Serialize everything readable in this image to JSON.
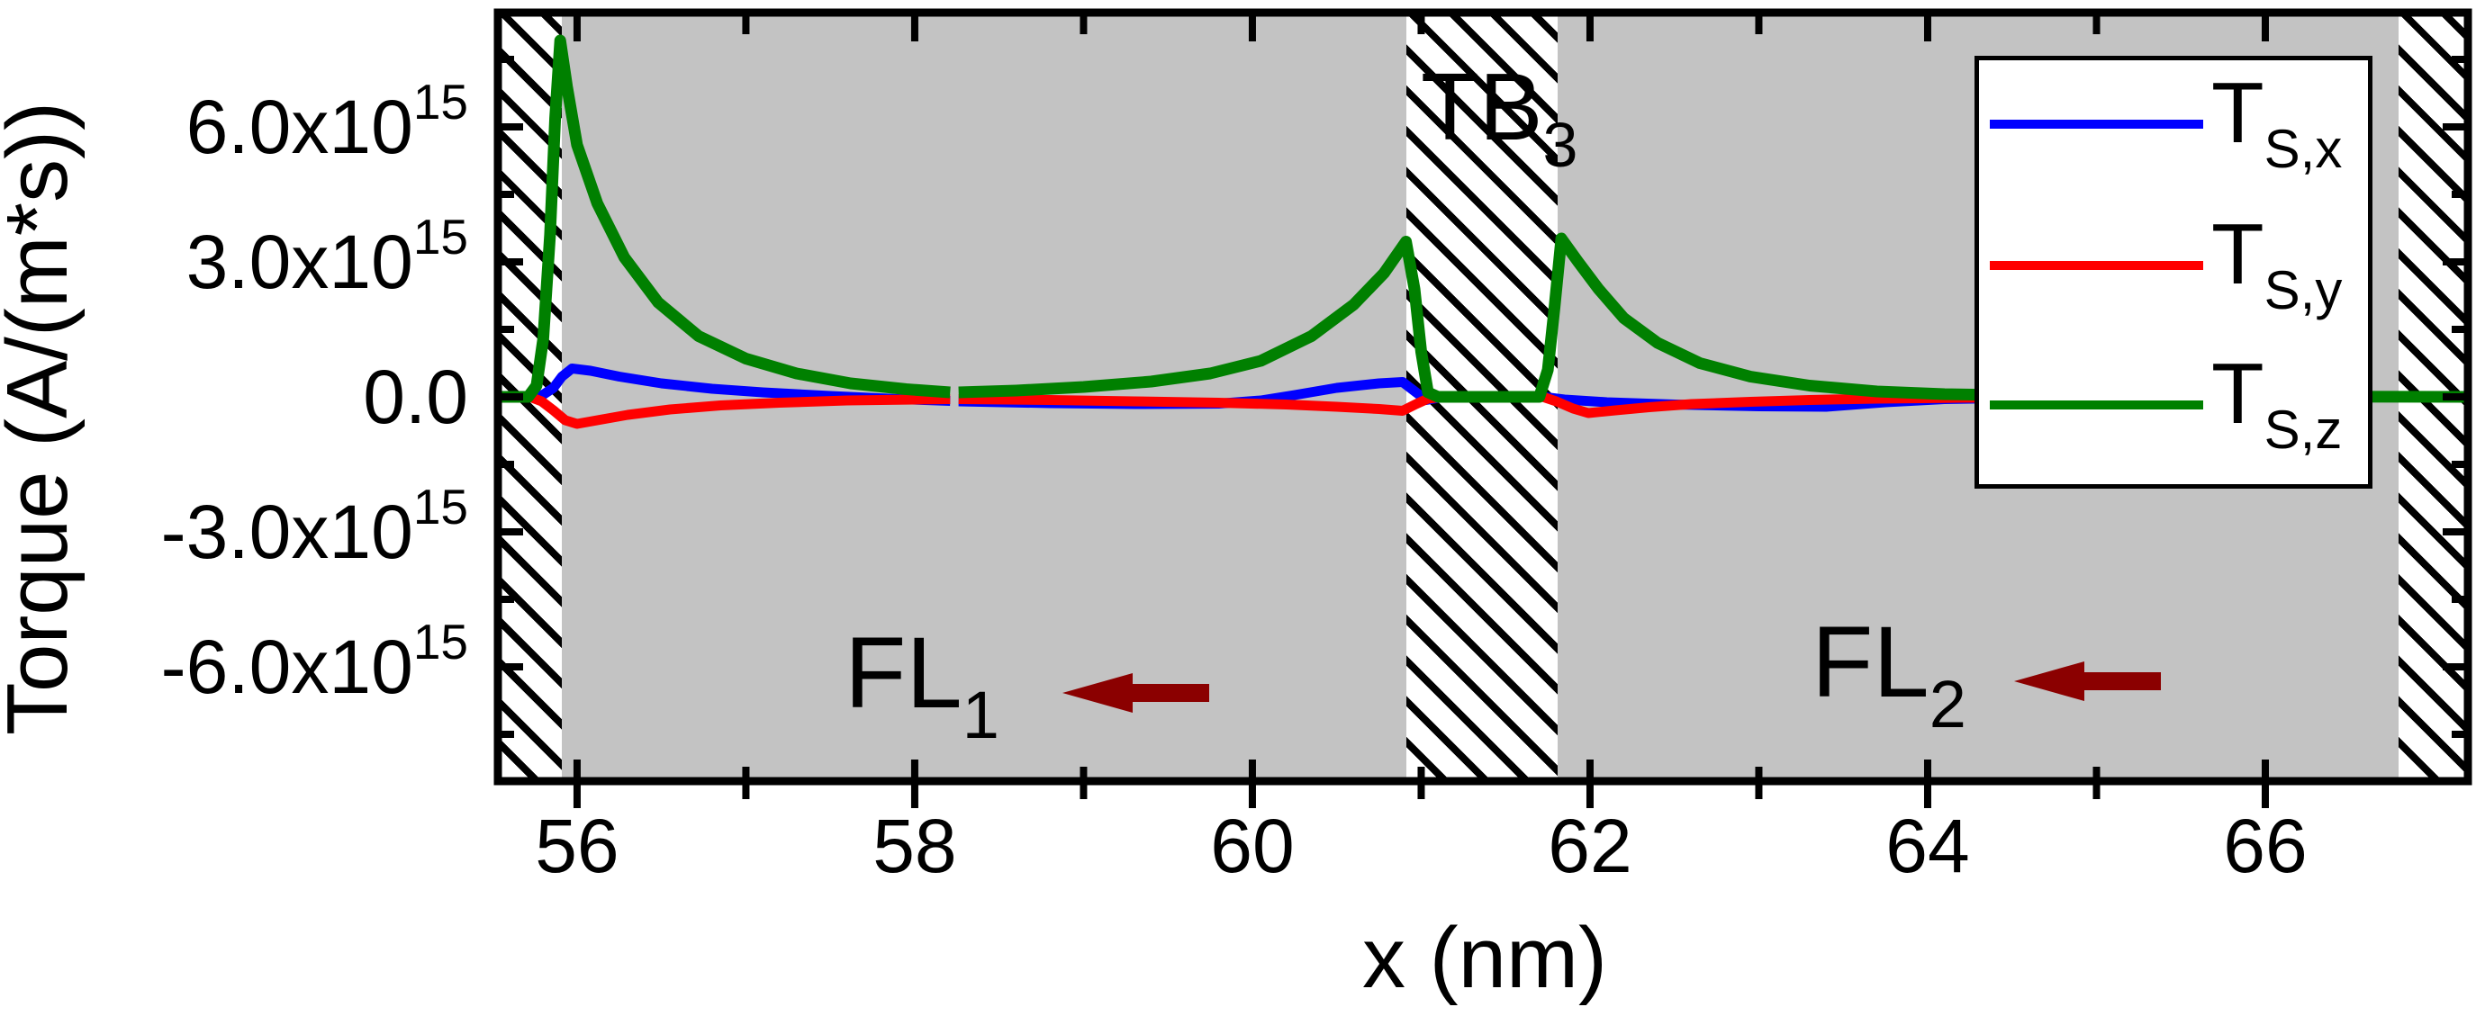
{
  "figure": {
    "background": "#ffffff"
  },
  "axes": {
    "x": {
      "title": "x (nm)",
      "major_ticks": [
        {
          "label": "56",
          "v": 56
        },
        {
          "label": "58",
          "v": 58
        },
        {
          "label": "60",
          "v": 60
        },
        {
          "label": "62",
          "v": 62
        },
        {
          "label": "64",
          "v": 64
        },
        {
          "label": "66",
          "v": 66
        }
      ],
      "minor_ticks": [
        57,
        59,
        61,
        63,
        65
      ],
      "top_ticks": [
        56,
        57,
        58,
        59,
        60,
        61,
        62,
        63,
        64,
        65,
        66
      ]
    },
    "y": {
      "title": "Torque (A/(m*s))",
      "major_ticks": [
        {
          "main": "6.0x10",
          "sup": "15",
          "v": 6
        },
        {
          "main": "3.0x10",
          "sup": "15",
          "v": 3
        },
        {
          "main": "0.0",
          "sup": "",
          "v": 0
        },
        {
          "main": "-3.0x10",
          "sup": "15",
          "v": -3
        },
        {
          "main": "-6.0x10",
          "sup": "15",
          "v": -6
        }
      ],
      "minor_ticks": [
        7.5,
        4.5,
        1.5,
        -1.5,
        -4.5,
        -7.5
      ]
    }
  },
  "labels": {
    "tb3": {
      "main": "TB",
      "sub": "3"
    },
    "fl1": {
      "main": "FL",
      "sub": "1"
    },
    "fl2": {
      "main": "FL",
      "sub": "2"
    }
  },
  "legend": {
    "items": [
      {
        "main": "T",
        "sub": "S,x",
        "color": "#0000ff"
      },
      {
        "main": "T",
        "sub": "S,y",
        "color": "#ff0000"
      },
      {
        "main": "T",
        "sub": "S,z",
        "color": "#008000"
      }
    ]
  },
  "colors": {
    "gray_region": "#c3c3c3",
    "arrow": "#8b0000",
    "axis": "#000000",
    "ts_x": "#0000ff",
    "ts_y": "#ff0000",
    "ts_z": "#008000"
  },
  "arrows": [
    {
      "region": "FL1",
      "direction": "left"
    },
    {
      "region": "FL2",
      "direction": "left"
    }
  ],
  "chart_data": {
    "type": "line",
    "xlabel": "x (nm)",
    "ylabel": "Torque (A/(m*s))",
    "xlim": [
      55.531,
      67.2
    ],
    "ylim": [
      -8540000000000000.0,
      8540000000000000.0
    ],
    "value_unit": "A/(m*s)",
    "value_scale": 1000000000000000.0,
    "ylim_scaled": [
      -8.54,
      8.54
    ],
    "grid": false,
    "legend_position": "upper right",
    "regions": [
      {
        "name": "tunnel-barrier-left",
        "kind": "hatch",
        "x0": 55.531,
        "x1": 55.91
      },
      {
        "name": "FL1",
        "kind": "gray",
        "x0": 55.91,
        "x1": 60.91
      },
      {
        "name": "TB3",
        "kind": "hatch",
        "x0": 60.91,
        "x1": 61.81
      },
      {
        "name": "FL2",
        "kind": "gray",
        "x0": 61.81,
        "x1": 66.79
      },
      {
        "name": "tunnel-barrier-right",
        "kind": "hatch",
        "x0": 66.79,
        "x1": 67.2
      }
    ],
    "series": [
      {
        "name": "T_S,x",
        "color": "#0000ff",
        "width": 11,
        "segments": [
          [
            [
              55.531,
              0
            ],
            [
              55.74,
              0
            ],
            [
              55.8,
              0.05
            ],
            [
              55.86,
              0.2
            ],
            [
              55.91,
              0.45
            ],
            [
              55.97,
              0.63
            ],
            [
              56.08,
              0.58
            ],
            [
              56.25,
              0.45
            ],
            [
              56.5,
              0.3
            ],
            [
              56.8,
              0.18
            ],
            [
              57.1,
              0.1
            ],
            [
              57.5,
              0.02
            ],
            [
              57.9,
              -0.05
            ],
            [
              58.21,
              -0.09
            ]
          ],
          [
            [
              58.26,
              -0.1
            ],
            [
              58.8,
              -0.14
            ],
            [
              59.3,
              -0.16
            ],
            [
              59.8,
              -0.15
            ],
            [
              60.05,
              -0.08
            ],
            [
              60.25,
              0.04
            ],
            [
              60.5,
              0.2
            ],
            [
              60.75,
              0.3
            ],
            [
              60.89,
              0.33
            ],
            [
              60.97,
              0.1
            ],
            [
              61.03,
              -0.07
            ],
            [
              61.12,
              -0.01
            ],
            [
              61.25,
              0
            ],
            [
              61.72,
              0
            ],
            [
              61.85,
              -0.06
            ],
            [
              62.1,
              -0.12
            ],
            [
              62.5,
              -0.17
            ],
            [
              63.0,
              -0.21
            ],
            [
              63.4,
              -0.22
            ],
            [
              63.75,
              -0.12
            ],
            [
              64.1,
              -0.05
            ],
            [
              64.6,
              -0.02
            ],
            [
              65.2,
              0
            ],
            [
              67.2,
              0
            ]
          ]
        ]
      },
      {
        "name": "T_S,y",
        "color": "#ff0000",
        "width": 11,
        "segments": [
          [
            [
              55.531,
              0
            ],
            [
              55.72,
              0
            ],
            [
              55.79,
              -0.1
            ],
            [
              55.86,
              -0.3
            ],
            [
              55.93,
              -0.52
            ],
            [
              56.0,
              -0.6
            ],
            [
              56.12,
              -0.52
            ],
            [
              56.3,
              -0.4
            ],
            [
              56.55,
              -0.28
            ],
            [
              56.85,
              -0.19
            ],
            [
              57.2,
              -0.13
            ],
            [
              57.6,
              -0.08
            ],
            [
              58.0,
              -0.06
            ],
            [
              58.21,
              -0.05
            ]
          ],
          [
            [
              58.26,
              -0.05
            ],
            [
              58.8,
              -0.07
            ],
            [
              59.3,
              -0.1
            ],
            [
              59.8,
              -0.13
            ],
            [
              60.2,
              -0.17
            ],
            [
              60.5,
              -0.22
            ],
            [
              60.75,
              -0.27
            ],
            [
              60.89,
              -0.31
            ],
            [
              60.97,
              -0.16
            ],
            [
              61.04,
              -0.04
            ],
            [
              61.12,
              0
            ],
            [
              61.72,
              0
            ],
            [
              61.8,
              -0.1
            ],
            [
              61.9,
              -0.26
            ],
            [
              61.99,
              -0.36
            ],
            [
              62.15,
              -0.3
            ],
            [
              62.35,
              -0.23
            ],
            [
              62.6,
              -0.16
            ],
            [
              62.95,
              -0.11
            ],
            [
              63.3,
              -0.07
            ],
            [
              63.7,
              -0.04
            ],
            [
              64.2,
              -0.02
            ],
            [
              64.8,
              -0.01
            ],
            [
              67.2,
              0
            ]
          ]
        ]
      },
      {
        "name": "T_S,z",
        "color": "#008000",
        "width": 13,
        "segments": [
          [
            [
              55.531,
              0
            ],
            [
              55.71,
              0
            ],
            [
              55.76,
              0.25
            ],
            [
              55.8,
              1.3
            ],
            [
              55.84,
              3.6
            ],
            [
              55.87,
              6.2
            ],
            [
              55.9,
              7.92
            ],
            [
              55.94,
              6.9
            ],
            [
              56.0,
              5.6
            ],
            [
              56.12,
              4.3
            ],
            [
              56.28,
              3.1
            ],
            [
              56.48,
              2.1
            ],
            [
              56.72,
              1.35
            ],
            [
              57.0,
              0.85
            ],
            [
              57.3,
              0.52
            ],
            [
              57.62,
              0.3
            ],
            [
              57.95,
              0.17
            ],
            [
              58.21,
              0.1
            ]
          ],
          [
            [
              58.26,
              0.1
            ],
            [
              58.6,
              0.14
            ],
            [
              59.0,
              0.22
            ],
            [
              59.4,
              0.34
            ],
            [
              59.75,
              0.52
            ],
            [
              60.05,
              0.8
            ],
            [
              60.35,
              1.35
            ],
            [
              60.6,
              2.05
            ],
            [
              60.78,
              2.75
            ],
            [
              60.91,
              3.45
            ],
            [
              60.96,
              2.4
            ],
            [
              61.0,
              1.0
            ],
            [
              61.04,
              0.1
            ],
            [
              61.1,
              0
            ],
            [
              61.7,
              0
            ],
            [
              61.75,
              0.6
            ],
            [
              61.79,
              2.0
            ],
            [
              61.83,
              3.52
            ],
            [
              61.93,
              3.0
            ],
            [
              62.05,
              2.4
            ],
            [
              62.2,
              1.75
            ],
            [
              62.4,
              1.2
            ],
            [
              62.65,
              0.75
            ],
            [
              62.95,
              0.45
            ],
            [
              63.3,
              0.25
            ],
            [
              63.7,
              0.12
            ],
            [
              64.1,
              0.06
            ],
            [
              64.6,
              0.03
            ],
            [
              65.2,
              0.01
            ],
            [
              67.2,
              0
            ]
          ]
        ]
      }
    ]
  }
}
